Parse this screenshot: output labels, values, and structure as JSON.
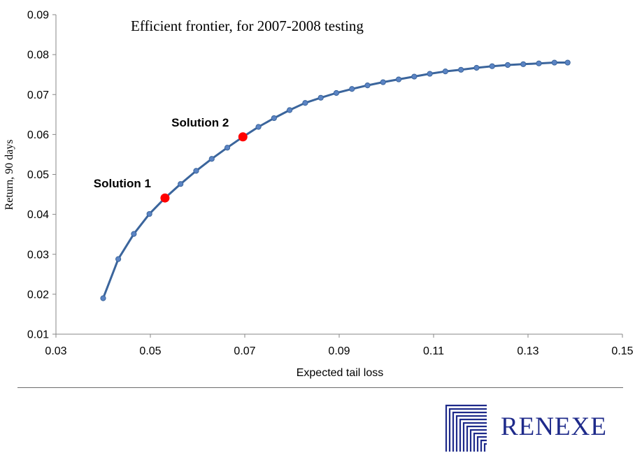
{
  "chart_data": {
    "type": "line",
    "title": "Efficient frontier, for 2007-2008 testing",
    "xlabel": "Expected tail loss",
    "ylabel": "Return, 90 days",
    "xlim": [
      0.03,
      0.15
    ],
    "ylim": [
      0.01,
      0.09
    ],
    "x_ticks": [
      "0.03",
      "0.05",
      "0.07",
      "0.09",
      "0.11",
      "0.13",
      "0.15"
    ],
    "y_ticks": [
      "0.01",
      "0.02",
      "0.03",
      "0.04",
      "0.05",
      "0.06",
      "0.07",
      "0.08",
      "0.09"
    ],
    "grid": false,
    "series_color": "#3b659c",
    "marker_color": "#5b84c4",
    "highlight_color": "#ff0000",
    "series": [
      {
        "x": [
          0.04,
          0.0432,
          0.0465,
          0.0498,
          0.0531,
          0.0564,
          0.0597,
          0.063,
          0.0663,
          0.0696,
          0.0729,
          0.0762,
          0.0795,
          0.0828,
          0.0861,
          0.0894,
          0.0927,
          0.096,
          0.0993,
          0.1026,
          0.1059,
          0.1092,
          0.1125,
          0.1158,
          0.1191,
          0.1224,
          0.1257,
          0.129,
          0.1323,
          0.1356,
          0.1384
        ],
        "y": [
          0.019,
          0.0288,
          0.0351,
          0.0401,
          0.0441,
          0.0476,
          0.0509,
          0.0539,
          0.0567,
          0.0594,
          0.0619,
          0.0641,
          0.0661,
          0.0679,
          0.0692,
          0.0704,
          0.0714,
          0.0723,
          0.0731,
          0.0738,
          0.0745,
          0.0752,
          0.0758,
          0.0762,
          0.0767,
          0.0771,
          0.0774,
          0.0776,
          0.0778,
          0.078,
          0.078
        ]
      }
    ],
    "highlights": [
      {
        "label": "Solution 1",
        "x": 0.0531,
        "y": 0.0441
      },
      {
        "label": "Solution 2",
        "x": 0.0696,
        "y": 0.0594
      }
    ]
  },
  "logo": {
    "name": "RENEXE",
    "icon": "renexe-logo-icon",
    "color": "#1e2a8a"
  }
}
